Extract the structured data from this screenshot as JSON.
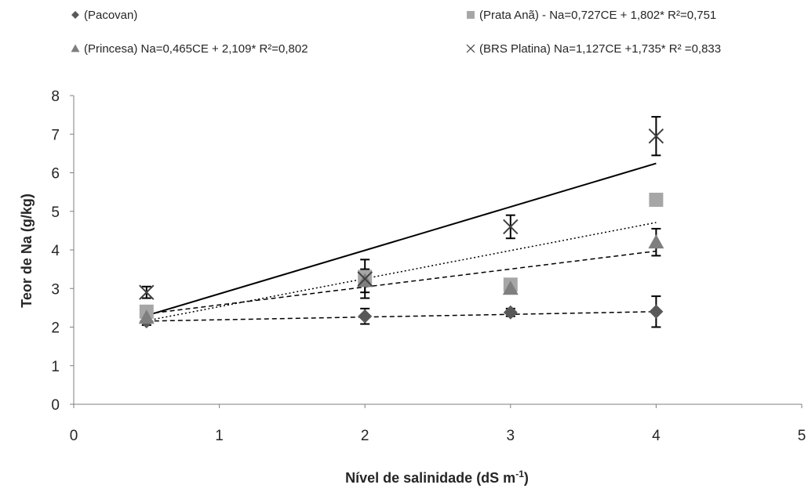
{
  "chart_data": {
    "type": "scatter",
    "xlabel": "Nível de salinidade (dS m",
    "xlabel_sup": "-1",
    "xlabel_end": ")",
    "ylabel": "Teor de Na (g/kg)",
    "xlim": [
      0,
      5
    ],
    "ylim": [
      0,
      8
    ],
    "xticks": [
      0,
      1,
      2,
      3,
      4,
      5
    ],
    "yticks": [
      0,
      1,
      2,
      3,
      4,
      5,
      6,
      7,
      8
    ],
    "grid": false,
    "legend_position": "top",
    "series": [
      {
        "name": "(Pacovan)",
        "marker": "diamond",
        "color": "#595959",
        "x": [
          0.5,
          2,
          3,
          4
        ],
        "y": [
          2.15,
          2.28,
          2.38,
          2.4
        ],
        "err": [
          0.1,
          0.2,
          0.1,
          0.4
        ],
        "fit": {
          "slope": 0.07,
          "intercept": 2.12,
          "style": "dashed"
        }
      },
      {
        "name": "(Prata Anã) - Na=0,727CE + 1,802*   R²=0,751",
        "marker": "square",
        "color": "#a6a6a6",
        "x": [
          0.5,
          2,
          3,
          4
        ],
        "y": [
          2.4,
          3.3,
          3.1,
          5.3
        ],
        "err": null,
        "fit": {
          "slope": 0.727,
          "intercept": 1.802,
          "style": "dotted"
        }
      },
      {
        "name": "(Princesa) Na=0,465CE + 2,109*   R²=0,802",
        "marker": "triangle",
        "color": "#7f7f7f",
        "x": [
          0.5,
          2,
          3,
          4
        ],
        "y": [
          2.25,
          3.2,
          3.0,
          4.2
        ],
        "err": [
          0.05,
          0.3,
          0.1,
          0.35
        ],
        "fit": {
          "slope": 0.465,
          "intercept": 2.109,
          "style": "dashed"
        }
      },
      {
        "name": "(BRS Platina) Na=1,127CE +1,735*   R² =0,833",
        "marker": "x",
        "color": "#404040",
        "x": [
          0.5,
          2,
          3,
          4
        ],
        "y": [
          2.9,
          3.25,
          4.6,
          6.95
        ],
        "err": [
          0.15,
          0.5,
          0.3,
          0.5
        ],
        "fit": {
          "slope": 1.127,
          "intercept": 1.735,
          "style": "solid"
        }
      }
    ]
  }
}
